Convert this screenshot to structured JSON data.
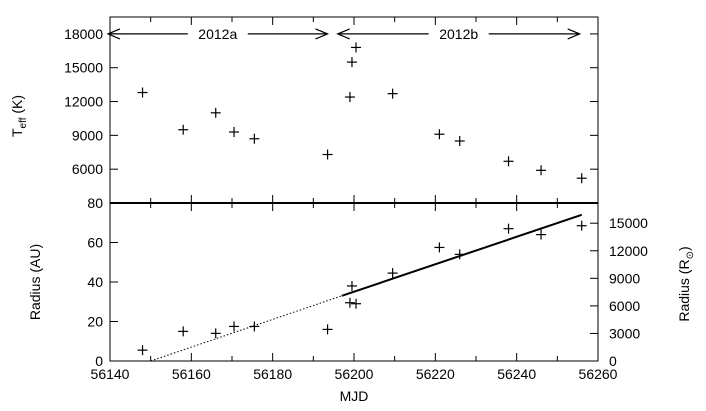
{
  "chart_data": [
    {
      "type": "scatter",
      "panel": "top",
      "xlabel": "",
      "ylabel": "T",
      "ylabel_sub": "eff",
      "ylabel_suffix": " (K)",
      "xlim": [
        56140,
        56260
      ],
      "ylim": [
        3000,
        19500
      ],
      "yticks": [
        3000,
        6000,
        9000,
        12000,
        15000,
        18000
      ],
      "yticks_labels": [
        "3000",
        "6000",
        "9000",
        "12000",
        "15000",
        "18000"
      ],
      "marker": "plus",
      "points": [
        {
          "x": 56148,
          "y": 12800
        },
        {
          "x": 56158,
          "y": 9500
        },
        {
          "x": 56166,
          "y": 11000
        },
        {
          "x": 56170.5,
          "y": 9300
        },
        {
          "x": 56175.5,
          "y": 8700
        },
        {
          "x": 56193.5,
          "y": 7300
        },
        {
          "x": 56199,
          "y": 12400
        },
        {
          "x": 56199.5,
          "y": 15500
        },
        {
          "x": 56200.5,
          "y": 16800
        },
        {
          "x": 56209.5,
          "y": 12700
        },
        {
          "x": 56221,
          "y": 9100
        },
        {
          "x": 56226,
          "y": 8500
        },
        {
          "x": 56238,
          "y": 6700
        },
        {
          "x": 56246,
          "y": 5900
        },
        {
          "x": 56256,
          "y": 5200
        }
      ],
      "annotations": [
        {
          "label": "2012a",
          "x_from": 56139.5,
          "x_to": 56193.5,
          "y": 18000
        },
        {
          "label": "2012b",
          "x_from": 56196,
          "x_to": 56255.5,
          "y": 18000
        }
      ]
    },
    {
      "type": "scatter",
      "panel": "bottom",
      "xlabel": "MJD",
      "ylabel": "Radius (AU)",
      "ylabel_right": "Radius (R",
      "ylabel_right_sub": "⊙",
      "ylabel_right_suffix": ")",
      "xlim": [
        56140,
        56260
      ],
      "ylim": [
        0,
        80
      ],
      "yticks": [
        0,
        20,
        40,
        60,
        80
      ],
      "yticks_labels": [
        "0",
        "20",
        "40",
        "60",
        "80"
      ],
      "ylim_right": [
        0,
        17200
      ],
      "yticks_right": [
        0,
        3000,
        6000,
        9000,
        12000,
        15000
      ],
      "yticks_right_labels": [
        "0",
        "3000",
        "6000",
        "9000",
        "12000",
        "15000"
      ],
      "xticks": [
        56140,
        56160,
        56180,
        56200,
        56220,
        56240,
        56260
      ],
      "xticks_labels": [
        "56140",
        "56160",
        "56180",
        "56200",
        "56220",
        "56240",
        "56260"
      ],
      "marker": "plus",
      "points": [
        {
          "x": 56148,
          "y": 5.5
        },
        {
          "x": 56158,
          "y": 15
        },
        {
          "x": 56166,
          "y": 14
        },
        {
          "x": 56170.5,
          "y": 17.5
        },
        {
          "x": 56175.5,
          "y": 17.5
        },
        {
          "x": 56193.5,
          "y": 16
        },
        {
          "x": 56199,
          "y": 29.5
        },
        {
          "x": 56199.5,
          "y": 38
        },
        {
          "x": 56200.5,
          "y": 29
        },
        {
          "x": 56209.5,
          "y": 44.5
        },
        {
          "x": 56221,
          "y": 57.5
        },
        {
          "x": 56226,
          "y": 54
        },
        {
          "x": 56238,
          "y": 67
        },
        {
          "x": 56246,
          "y": 64
        },
        {
          "x": 56256,
          "y": 68.5
        }
      ],
      "fit_line": {
        "x_start": 56197,
        "y_start": 33,
        "x_end": 56256,
        "y_end": 74
      },
      "fit_extrapolation": {
        "x_start": 56150,
        "y_start": 0,
        "x_end": 56197,
        "y_end": 33,
        "style": "dotted"
      }
    }
  ]
}
